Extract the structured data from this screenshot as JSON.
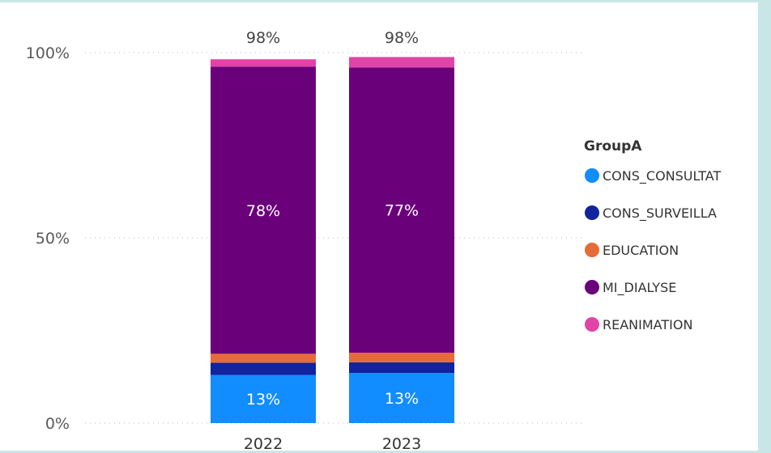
{
  "chart_data": {
    "type": "bar",
    "stacked": true,
    "categories": [
      "2022",
      "2023"
    ],
    "ylim": [
      0,
      100
    ],
    "yticks": [
      "0%",
      "50%",
      "100%"
    ],
    "ytick_values": [
      0,
      50,
      100
    ],
    "grid": true,
    "legend": {
      "title": "GroupA",
      "placement": "right"
    },
    "series": [
      {
        "name": "CONS_CONSULTAT",
        "color": "#118DFF",
        "values": [
          13,
          13.5
        ]
      },
      {
        "name": "CONS_SURVEILLA",
        "color": "#12239E",
        "values": [
          3.3,
          2.9
        ]
      },
      {
        "name": "EDUCATION",
        "color": "#E66C37",
        "values": [
          2.4,
          2.6
        ]
      },
      {
        "name": "MI_DIALYSE",
        "color": "#6B007B",
        "values": [
          77.5,
          77
        ]
      },
      {
        "name": "REANIMATION",
        "color": "#E044A7",
        "values": [
          2.0,
          2.8
        ]
      }
    ],
    "data_labels": [
      {
        "series": "CONS_CONSULTAT",
        "values": [
          "13%",
          "13%"
        ]
      },
      {
        "series": "MI_DIALYSE",
        "values": [
          "78%",
          "77%"
        ]
      }
    ],
    "total_labels": [
      "98%",
      "98%"
    ]
  }
}
